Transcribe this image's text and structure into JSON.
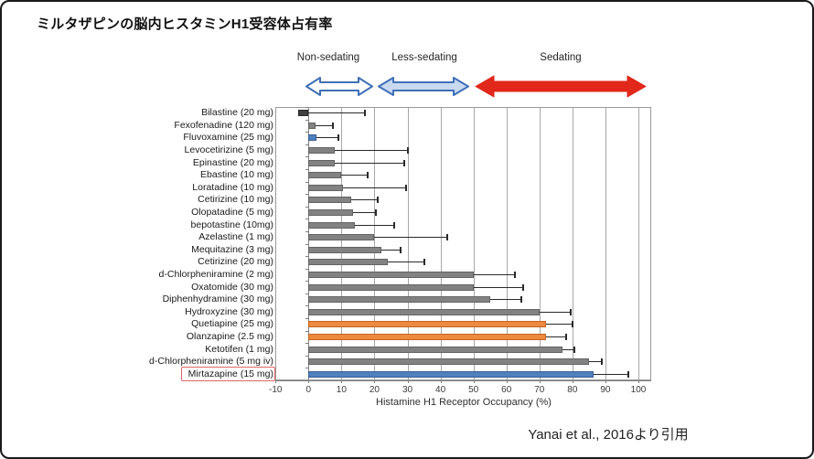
{
  "title": "ミルタザピンの脳内ヒスタミンH1受容体占有率",
  "citation": "Yanai  et al., 2016より引用",
  "annotations": {
    "non_sedating": "Non-sedating",
    "less_sedating": "Less-sedating",
    "sedating": "Sedating"
  },
  "colors": {
    "gray_fill": "#828282",
    "gray_border": "#636363",
    "dark_fill": "#3f3f3f",
    "dark_border": "#2b2b2b",
    "blue_fill": "#4f81bd",
    "blue_border": "#3a5f94",
    "orange_fill": "#ee8a3f",
    "orange_border": "#c26420",
    "arrow_blue_stroke": "#4070b8",
    "arrow_white_fill": "#ffffff",
    "arrow_lightblue_fill": "#c9d9ef",
    "arrow_red": "#e2271b",
    "highlight_box": "#e06565",
    "gridline": "#a8a8a8",
    "axis_line": "#7f7f7f",
    "error_bar": "#2a2a2a"
  },
  "chart_data": {
    "type": "bar",
    "orientation": "horizontal",
    "xlabel": "Histamine H1 Receptor Occupancy (%)",
    "xlim": [
      -10,
      104
    ],
    "xticks": [
      -10,
      0,
      10,
      20,
      30,
      40,
      50,
      60,
      70,
      80,
      90,
      100
    ],
    "grid": true,
    "error_bars": "upper-only",
    "highlighted_category": "Mirtazapine (15 mg)",
    "rows": [
      {
        "label": "Bilastine (20 mg)",
        "value": -3,
        "error_high": 17,
        "color": "dark",
        "highlight": false
      },
      {
        "label": "Fexofenadine (120 mg)",
        "value": 2,
        "error_high": 7.5,
        "color": "gray",
        "highlight": false
      },
      {
        "label": "Fluvoxamine (25 mg)",
        "value": 2.5,
        "error_high": 9,
        "color": "blue",
        "highlight": false
      },
      {
        "label": "Levocetirizine (5 mg)",
        "value": 8,
        "error_high": 30,
        "color": "gray",
        "highlight": false
      },
      {
        "label": "Epinastine (20 mg)",
        "value": 8,
        "error_high": 29,
        "color": "gray",
        "highlight": false
      },
      {
        "label": "Ebastine (10 mg)",
        "value": 10,
        "error_high": 18,
        "color": "gray",
        "highlight": false
      },
      {
        "label": "Loratadine (10 mg)",
        "value": 10.5,
        "error_high": 29.5,
        "color": "gray",
        "highlight": false
      },
      {
        "label": "Cetirizine (10 mg)",
        "value": 13,
        "error_high": 21,
        "color": "gray",
        "highlight": false
      },
      {
        "label": "Olopatadine (5 mg)",
        "value": 13.5,
        "error_high": 20.5,
        "color": "gray",
        "highlight": false
      },
      {
        "label": "bepotastine (10mg)",
        "value": 14,
        "error_high": 26,
        "color": "gray",
        "highlight": false
      },
      {
        "label": "Azelastine (1 mg)",
        "value": 20,
        "error_high": 42,
        "color": "gray",
        "highlight": false
      },
      {
        "label": "Mequitazine (3 mg)",
        "value": 22,
        "error_high": 28,
        "color": "gray",
        "highlight": false
      },
      {
        "label": "Cetirizine (20 mg)",
        "value": 24,
        "error_high": 35,
        "color": "gray",
        "highlight": false
      },
      {
        "label": "d-Chlorpheniramine (2 mg)",
        "value": 50,
        "error_high": 62.5,
        "color": "gray",
        "highlight": false
      },
      {
        "label": "Oxatomide (30 mg)",
        "value": 50,
        "error_high": 65,
        "color": "gray",
        "highlight": false
      },
      {
        "label": "Diphenhydramine (30 mg)",
        "value": 55,
        "error_high": 64.5,
        "color": "gray",
        "highlight": false
      },
      {
        "label": "Hydroxyzine (30 mg)",
        "value": 70,
        "error_high": 79.5,
        "color": "gray",
        "highlight": false
      },
      {
        "label": "Quetiapine (25 mg)",
        "value": 72,
        "error_high": 80,
        "color": "orange",
        "highlight": false
      },
      {
        "label": "Olanzapine (2.5 mg)",
        "value": 72,
        "error_high": 78,
        "color": "orange",
        "highlight": false
      },
      {
        "label": "Ketotifen (1 mg)",
        "value": 77,
        "error_high": 80.5,
        "color": "gray",
        "highlight": false
      },
      {
        "label": "d-Chlorpheniramine (5 mg iv)",
        "value": 85,
        "error_high": 89,
        "color": "gray",
        "highlight": false
      },
      {
        "label": "Mirtazapine (15 mg)",
        "value": 86.5,
        "error_high": 97,
        "color": "blue",
        "highlight": true
      }
    ]
  }
}
